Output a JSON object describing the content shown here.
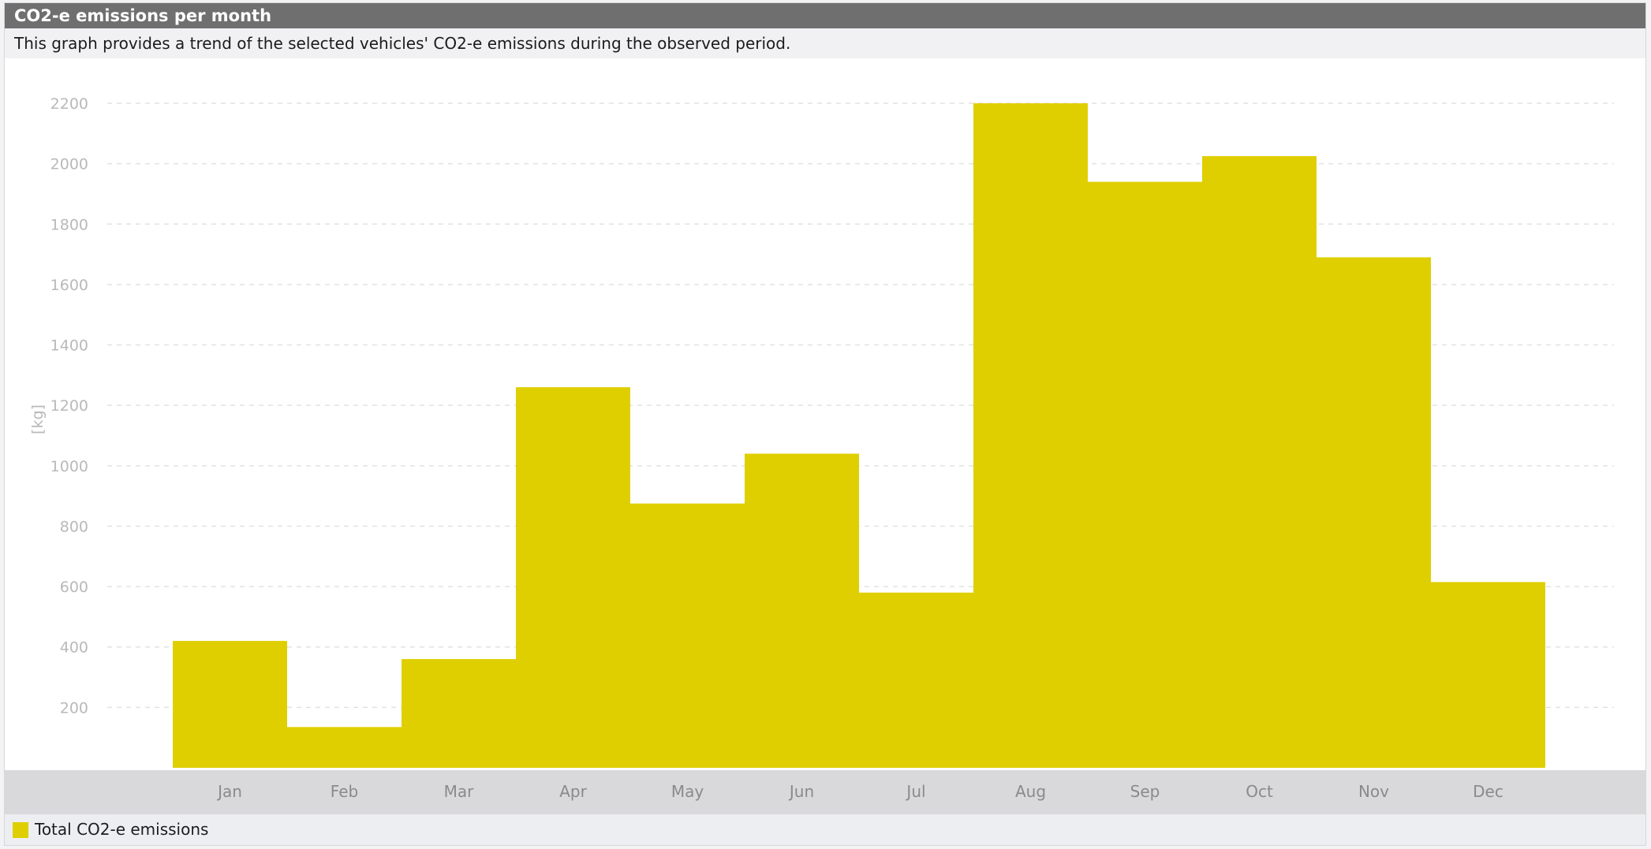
{
  "header": {
    "title": "CO2-e emissions per month",
    "subtitle": "This graph provides a trend of the selected vehicles' CO2-e emissions during the observed period."
  },
  "legend": {
    "label": "Total CO2-e emissions",
    "color": "#dfcf00"
  },
  "colors": {
    "bar": "#dfcf00",
    "title_bar": "#6f6f6f",
    "grid": "#e2e2e2",
    "tick_text": "#b9b9b9"
  },
  "chart_data": {
    "type": "bar",
    "title": "CO2-e emissions per month",
    "ylabel": "[kg]",
    "xlabel": "",
    "categories": [
      "Jan",
      "Feb",
      "Mar",
      "Apr",
      "May",
      "Jun",
      "Jul",
      "Aug",
      "Sep",
      "Oct",
      "Nov",
      "Dec"
    ],
    "series": [
      {
        "name": "Total CO2-e emissions",
        "values": [
          420,
          135,
          360,
          1260,
          875,
          1040,
          580,
          2200,
          1940,
          2025,
          1690,
          615
        ]
      }
    ],
    "ylim": [
      0,
      2200
    ],
    "yticks": [
      200,
      400,
      600,
      800,
      1000,
      1200,
      1400,
      1600,
      1800,
      2000,
      2200
    ],
    "grid": "horizontal-dashed",
    "legend_position": "bottom-left"
  }
}
